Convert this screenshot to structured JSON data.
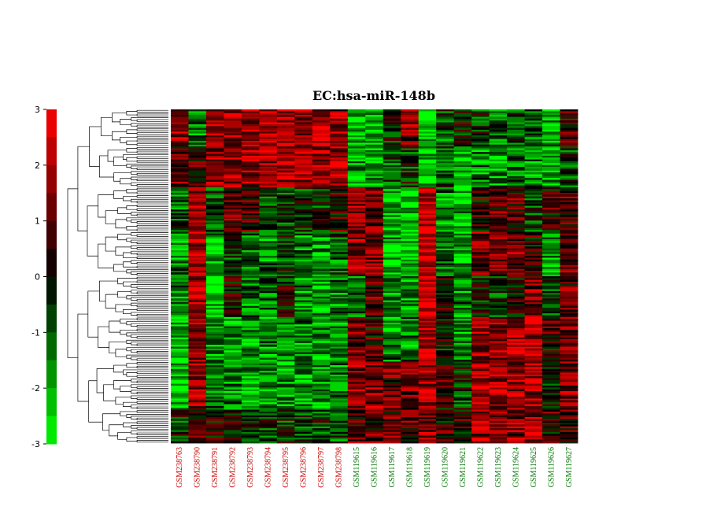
{
  "chart_data": {
    "type": "heatmap",
    "title": "EC:hsa-miR-148b",
    "xlabel": "",
    "ylabel": "",
    "color_scale": {
      "min": -3,
      "max": 3,
      "ticks": [
        3,
        2,
        1,
        0,
        -1,
        -2,
        -3
      ],
      "low_color": "#00ff00",
      "mid_color": "#000000",
      "high_color": "#ff0000"
    },
    "group_colors": {
      "group_a": "#cc0000",
      "group_b": "#007700"
    },
    "columns": [
      {
        "name": "GSM238763",
        "group": "group_a"
      },
      {
        "name": "GSM238790",
        "group": "group_a"
      },
      {
        "name": "GSM238791",
        "group": "group_a"
      },
      {
        "name": "GSM238792",
        "group": "group_a"
      },
      {
        "name": "GSM238793",
        "group": "group_a"
      },
      {
        "name": "GSM238794",
        "group": "group_a"
      },
      {
        "name": "GSM238795",
        "group": "group_a"
      },
      {
        "name": "GSM238796",
        "group": "group_a"
      },
      {
        "name": "GSM238797",
        "group": "group_a"
      },
      {
        "name": "GSM238798",
        "group": "group_a"
      },
      {
        "name": "GSM119615",
        "group": "group_b"
      },
      {
        "name": "GSM119616",
        "group": "group_b"
      },
      {
        "name": "GSM119617",
        "group": "group_b"
      },
      {
        "name": "GSM119618",
        "group": "group_b"
      },
      {
        "name": "GSM119619",
        "group": "group_b"
      },
      {
        "name": "GSM119620",
        "group": "group_b"
      },
      {
        "name": "GSM119621",
        "group": "group_b"
      },
      {
        "name": "GSM119622",
        "group": "group_b"
      },
      {
        "name": "GSM119623",
        "group": "group_b"
      },
      {
        "name": "GSM119624",
        "group": "group_b"
      },
      {
        "name": "GSM119625",
        "group": "group_b"
      },
      {
        "name": "GSM119626",
        "group": "group_b"
      },
      {
        "name": "GSM119627",
        "group": "group_b"
      }
    ],
    "row_blocks": [
      {
        "rows": 20,
        "means": [
          1.8,
          -1.5,
          1.6,
          1.7,
          1.9,
          1.8,
          1.7,
          1.8,
          1.9,
          1.6,
          -2.2,
          -1.8,
          -0.2,
          1.5,
          -2.6,
          -1.0,
          -0.2,
          -0.5,
          -1.0,
          -0.8,
          -1.2,
          -2.0,
          0.8
        ]
      },
      {
        "rows": 22,
        "means": [
          1.0,
          0.5,
          1.6,
          1.8,
          1.8,
          1.7,
          1.8,
          1.9,
          1.8,
          1.6,
          -1.8,
          -1.5,
          -1.0,
          -0.5,
          -2.3,
          -1.2,
          -1.8,
          -1.6,
          -1.6,
          -1.2,
          -1.5,
          -2.0,
          -0.8
        ]
      },
      {
        "rows": 24,
        "means": [
          -1.2,
          1.8,
          -0.8,
          0.8,
          0.6,
          -0.6,
          -0.8,
          -0.5,
          -0.3,
          0.6,
          1.8,
          1.4,
          -2.3,
          -2.0,
          2.3,
          -1.6,
          -2.0,
          0.4,
          1.1,
          0.9,
          -0.8,
          0.4,
          0.8
        ]
      },
      {
        "rows": 24,
        "means": [
          -1.6,
          2.0,
          -2.2,
          -0.6,
          -1.2,
          -1.4,
          -0.4,
          -1.5,
          -1.6,
          -1.0,
          1.6,
          1.4,
          -2.0,
          -2.2,
          2.4,
          -1.2,
          -1.8,
          1.3,
          1.4,
          1.3,
          0.5,
          -1.8,
          1.2
        ]
      },
      {
        "rows": 22,
        "means": [
          -1.6,
          2.0,
          -2.2,
          0.2,
          -1.4,
          -1.2,
          -0.2,
          -1.5,
          -1.8,
          -1.5,
          -1.0,
          0.9,
          -1.6,
          -1.8,
          2.2,
          0.4,
          -1.6,
          -0.2,
          -0.8,
          0.2,
          1.5,
          -0.8,
          1.0
        ]
      },
      {
        "rows": 24,
        "means": [
          -2.2,
          1.6,
          -1.6,
          -1.8,
          -1.6,
          -1.6,
          -1.5,
          -1.6,
          -1.8,
          -1.6,
          0.9,
          0.6,
          -1.5,
          -1.4,
          2.2,
          0.1,
          -1.4,
          1.8,
          1.9,
          1.8,
          2.0,
          0.5,
          1.4
        ]
      },
      {
        "rows": 26,
        "means": [
          -2.2,
          1.6,
          -1.2,
          -1.6,
          -1.8,
          -1.8,
          -1.8,
          -1.8,
          -1.8,
          -1.6,
          1.6,
          1.5,
          1.1,
          1.3,
          1.8,
          0.3,
          -0.5,
          1.8,
          1.9,
          1.9,
          1.9,
          -0.6,
          1.3
        ]
      },
      {
        "rows": 18,
        "means": [
          -0.5,
          0.6,
          0.2,
          0.2,
          -0.4,
          -0.4,
          -0.4,
          -0.6,
          -0.4,
          -0.8,
          0.9,
          1.0,
          1.0,
          1.0,
          1.5,
          0.6,
          0.4,
          1.5,
          1.6,
          1.6,
          1.7,
          0.5,
          1.0
        ]
      }
    ]
  }
}
